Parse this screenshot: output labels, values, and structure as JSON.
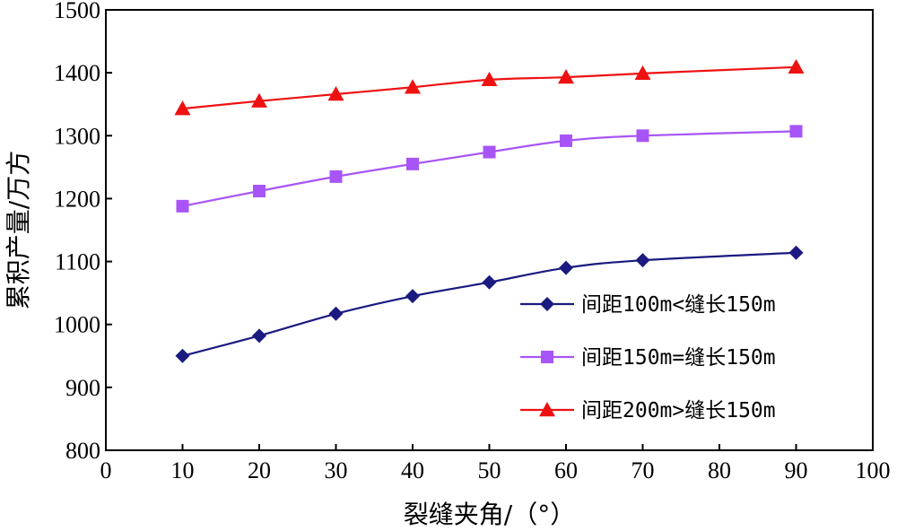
{
  "chart_data": {
    "type": "line",
    "xlabel": "裂缝夹角/（°）",
    "ylabel": "累积产量/万方",
    "xlim": [
      0,
      100
    ],
    "ylim": [
      800,
      1500
    ],
    "xticks": [
      0,
      10,
      20,
      30,
      40,
      50,
      60,
      70,
      80,
      90,
      100
    ],
    "yticks": [
      800,
      900,
      1000,
      1100,
      1200,
      1300,
      1400,
      1500
    ],
    "grid": false,
    "legend_position": "right-middle",
    "series": [
      {
        "name": "间距100m<缝长150m",
        "color": "#1a1a80",
        "marker": "diamond",
        "x": [
          10,
          20,
          30,
          40,
          50,
          60,
          70,
          90
        ],
        "values": [
          950,
          982,
          1017,
          1045,
          1067,
          1090,
          1102,
          1114
        ]
      },
      {
        "name": "间距150m=缝长150m",
        "color": "#a855f7",
        "marker": "square",
        "x": [
          10,
          20,
          30,
          40,
          50,
          60,
          70,
          90
        ],
        "values": [
          1188,
          1212,
          1235,
          1255,
          1274,
          1292,
          1300,
          1307
        ]
      },
      {
        "name": "间距200m>缝长150m",
        "color": "#ee1111",
        "marker": "triangle",
        "x": [
          10,
          20,
          30,
          40,
          50,
          60,
          70,
          90
        ],
        "values": [
          1343,
          1355,
          1366,
          1377,
          1389,
          1393,
          1399,
          1409
        ]
      }
    ]
  }
}
